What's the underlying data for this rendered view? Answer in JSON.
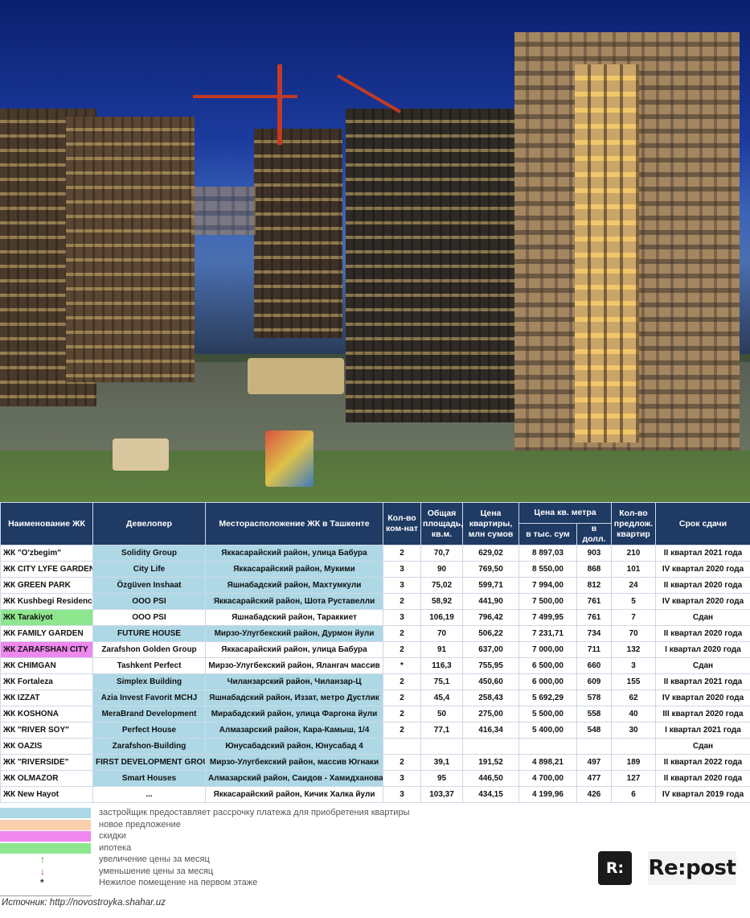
{
  "table": {
    "headers": {
      "name": "Наименование ЖК",
      "developer": "Девелопер",
      "location": "Месторасположение ЖК в Ташкенте",
      "rooms": "Кол-во ком-нат",
      "area": "Общая площадь, кв.м.",
      "price": "Цена квартиры, млн сумов",
      "sqm_group": "Цена кв. метра",
      "sqm_sum": "в тыс. сум",
      "sqm_usd": "в долл.",
      "offers": "Кол-во предлож. квартир",
      "deadline": "Срок сдачи"
    },
    "rows": [
      {
        "name": "ЖК \"O'zbegim\"",
        "developer": "Solidity Group",
        "location": "Яккасарайский район, улица Бабура",
        "rooms": "2",
        "area": "70,7",
        "price": "629,02",
        "sqm_sum": "8 897,03",
        "sqm_usd": "903",
        "offers": "210",
        "deadline": "II квартал 2021 года",
        "highlight": "blue"
      },
      {
        "name": "ЖК CITY LYFE GARDEN",
        "developer": "City Life",
        "location": "Яккасарайский район, Мукими",
        "rooms": "3",
        "area": "90",
        "price": "769,50",
        "sqm_sum": "8 550,00",
        "sqm_usd": "868",
        "offers": "101",
        "deadline": "IV квартал 2020 года",
        "highlight": "blue"
      },
      {
        "name": "ЖК GREEN PARK",
        "developer": "Özgüven Inshaat",
        "location": "Яшнабадский район, Махтумкули",
        "rooms": "3",
        "area": "75,02",
        "price": "599,71",
        "sqm_sum": "7 994,00",
        "sqm_usd": "812",
        "offers": "24",
        "deadline": "II квартал 2020 года",
        "highlight": "blue"
      },
      {
        "name": "ЖК Kushbegi Residence",
        "developer": "OOO PSI",
        "location": "Яккасарайский район, Шота Руставелли",
        "rooms": "2",
        "area": "58,92",
        "price": "441,90",
        "sqm_sum": "7 500,00",
        "sqm_usd": "761",
        "offers": "5",
        "deadline": "IV квартал 2020 года",
        "highlight": "blue"
      },
      {
        "name": "ЖК Tarakiyot",
        "developer": "OOO PSI",
        "location": "Яшнабадский район, Тараккиет",
        "rooms": "3",
        "area": "106,19",
        "price": "796,42",
        "sqm_sum": "7 499,95",
        "sqm_usd": "761",
        "offers": "7",
        "deadline": "Сдан",
        "highlight": "green"
      },
      {
        "name": "ЖК FAMILY GARDEN",
        "developer": "FUTURE HOUSE",
        "location": "Мирзо-Улугбекский район, Дурмон йули",
        "rooms": "2",
        "area": "70",
        "price": "506,22",
        "sqm_sum": "7 231,71",
        "sqm_usd": "734",
        "offers": "70",
        "deadline": "II квартал 2020 года",
        "highlight": "blue"
      },
      {
        "name": "ЖК ZARAFSHAN CITY",
        "developer": "Zarafshon Golden Group",
        "location": "Яккасарайский район, улица Бабура",
        "rooms": "2",
        "area": "91",
        "price": "637,00",
        "sqm_sum": "7 000,00",
        "sqm_usd": "711",
        "offers": "132",
        "deadline": "I квартал 2020 года",
        "highlight": "pink"
      },
      {
        "name": "ЖК CHIMGAN",
        "developer": "Tashkent Perfect",
        "location": "Мирзо-Улугбекский район, Ялангач массив",
        "rooms": "*",
        "area": "116,3",
        "price": "755,95",
        "sqm_sum": "6 500,00",
        "sqm_usd": "660",
        "offers": "3",
        "deadline": "Сдан",
        "highlight": "none"
      },
      {
        "name": "ЖК Fortaleza",
        "developer": "Simplex Building",
        "location": "Чиланзарский район, Чиланзар-Ц",
        "rooms": "2",
        "area": "75,1",
        "price": "450,60",
        "sqm_sum": "6 000,00",
        "sqm_usd": "609",
        "offers": "155",
        "deadline": "II квартал 2021 года",
        "highlight": "blue"
      },
      {
        "name": "ЖК IZZAT",
        "developer": "Azia Invest Favorit MCHJ",
        "location": "Яшнабадский район, Иззат, метро Дустлик",
        "rooms": "2",
        "area": "45,4",
        "price": "258,43",
        "sqm_sum": "5 692,29",
        "sqm_usd": "578",
        "offers": "62",
        "deadline": "IV квартал 2020 года",
        "highlight": "blue"
      },
      {
        "name": "ЖК KOSHONA",
        "developer": "MeraBrand Development",
        "location": "Мирабадский район, улица Фаргона йули",
        "rooms": "2",
        "area": "50",
        "price": "275,00",
        "sqm_sum": "5 500,00",
        "sqm_usd": "558",
        "offers": "40",
        "deadline": "III квартал 2020 года",
        "highlight": "blue"
      },
      {
        "name": "ЖК \"RIVER SOY\"",
        "developer": "Perfect House",
        "location": "Алмазарский район, Кара-Камыш, 1/4",
        "rooms": "2",
        "area": "77,1",
        "price": "416,34",
        "sqm_sum": "5 400,00",
        "sqm_usd": "548",
        "offers": "30",
        "deadline": "I квартал 2021 года",
        "highlight": "blue"
      },
      {
        "name": "ЖК OAZIS",
        "developer": "Zarafshon-Building",
        "location": "Юнусабадский район, Юнусабад 4",
        "rooms": "",
        "area": "",
        "price": "",
        "sqm_sum": "",
        "sqm_usd": "",
        "offers": "",
        "deadline": "Сдан",
        "highlight": "blue"
      },
      {
        "name": "ЖК \"RIVERSIDE\"",
        "developer": "FIRST DEVELOPMENT GROUP",
        "location": "Мирзо-Улугбекский район, массив Югнаки",
        "rooms": "2",
        "area": "39,1",
        "price": "191,52",
        "sqm_sum": "4 898,21",
        "sqm_usd": "497",
        "offers": "189",
        "deadline": "II квартал 2022 года",
        "highlight": "blue"
      },
      {
        "name": "ЖК OLMAZOR",
        "developer": "Smart Houses",
        "location": "Алмазарский район, Саидов - Хамидханова",
        "rooms": "3",
        "area": "95",
        "price": "446,50",
        "sqm_sum": "4 700,00",
        "sqm_usd": "477",
        "offers": "127",
        "deadline": "II квартал 2020 года",
        "highlight": "blue"
      },
      {
        "name": "ЖК New Hayot",
        "developer": "...",
        "location": "Яккасарайский район, Кичик Халка йули",
        "rooms": "3",
        "area": "103,37",
        "price": "434,15",
        "sqm_sum": "4 199,96",
        "sqm_usd": "426",
        "offers": "6",
        "deadline": "IV квартал 2019 года",
        "highlight": "none"
      }
    ]
  },
  "legend": [
    {
      "text": "застройщик предоставляет рассрочку платежа для приобретения квартиры",
      "color": "#aed8e6",
      "symbol": ""
    },
    {
      "text": "новое предложение",
      "color": "#f9cfae",
      "symbol": ""
    },
    {
      "text": "скидки",
      "color": "#ee88ee",
      "symbol": ""
    },
    {
      "text": "ипотека",
      "color": "#8ee68e",
      "symbol": ""
    },
    {
      "text": "увеличение цены за месяц",
      "color": "",
      "symbol": "↑",
      "symbol_color": "#2a9a2a"
    },
    {
      "text": "уменьшение цены за месяц",
      "color": "",
      "symbol": "↓",
      "symbol_color": "#d22a2a"
    },
    {
      "text": "Нежилое помещение на первом этаже",
      "color": "",
      "symbol": "*",
      "symbol_color": "#333333"
    }
  ],
  "source": "Источник: http://novostroyka.shahar.uz",
  "logo": {
    "mark": "R:",
    "text": "Re:post"
  }
}
